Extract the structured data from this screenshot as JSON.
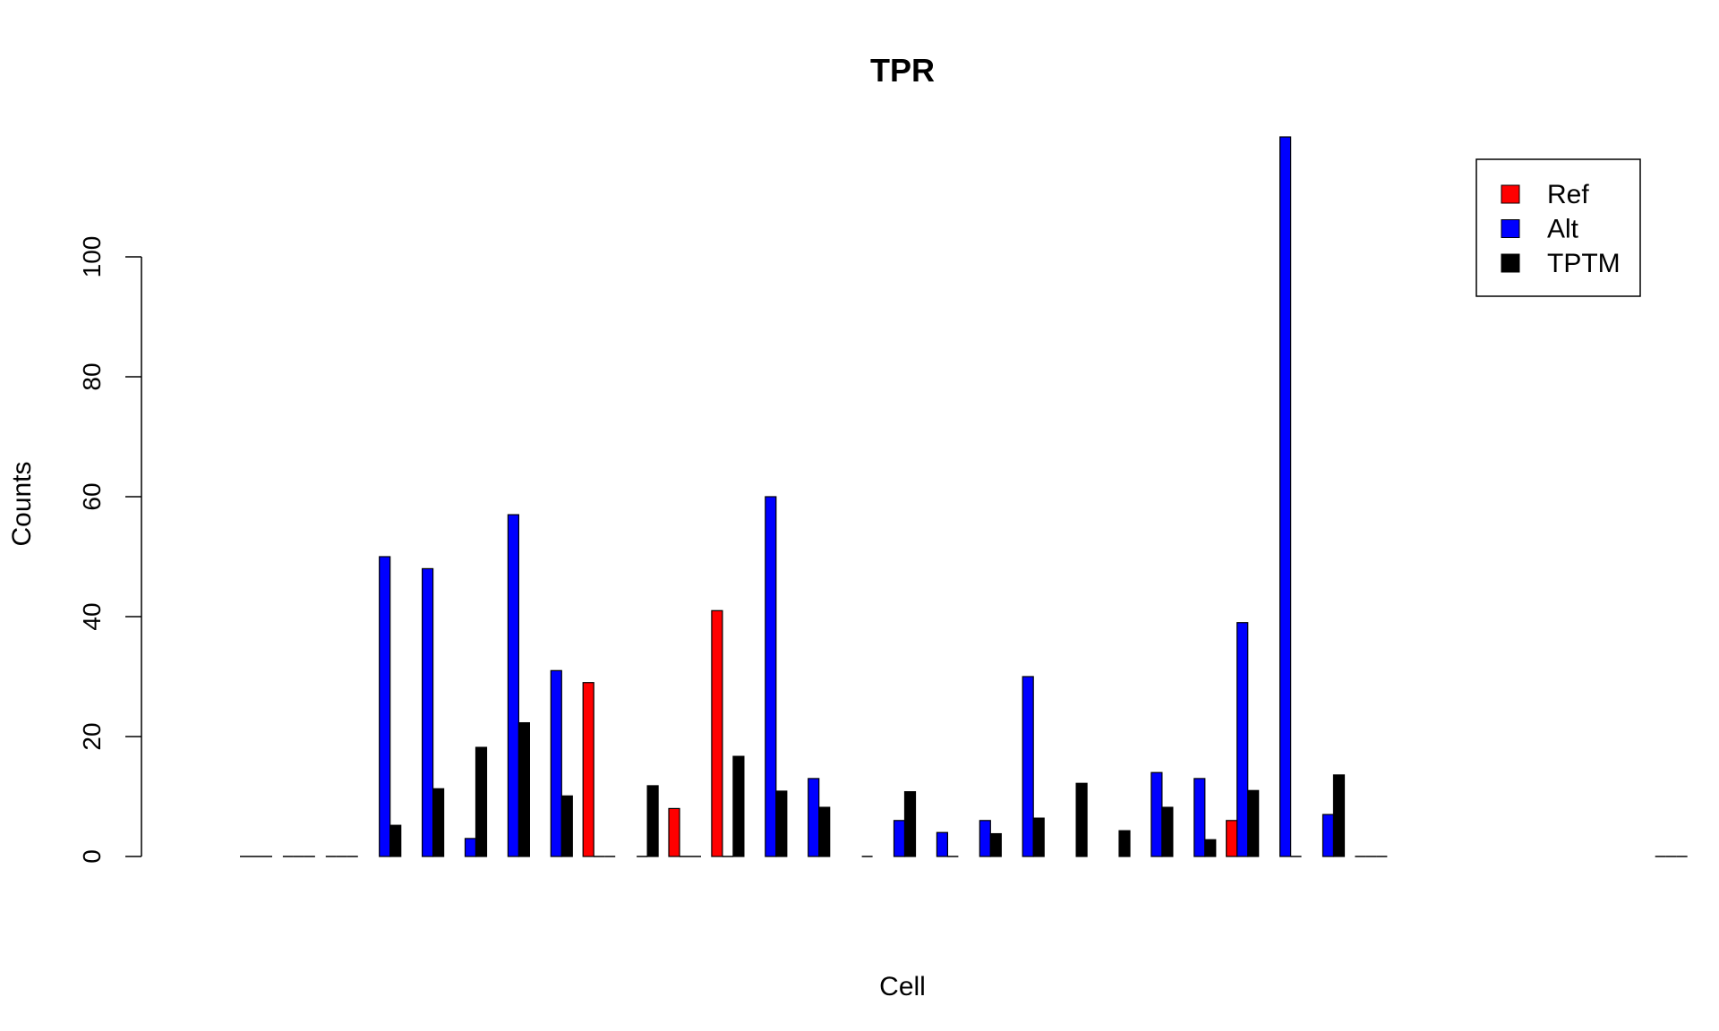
{
  "chart_data": {
    "type": "bar",
    "title": "TPR",
    "xlabel": "Cell",
    "ylabel": "Counts",
    "ylim": [
      0,
      120
    ],
    "yticks": [
      0,
      20,
      40,
      60,
      80,
      100
    ],
    "grid": false,
    "legend_position": "top-right",
    "n_cells": 34,
    "series": [
      {
        "name": "Ref",
        "color": "#ff0000",
        "values": [
          0,
          0,
          0,
          0,
          0,
          0,
          0,
          0,
          29,
          0,
          8,
          41,
          0,
          0,
          0,
          0,
          0,
          0,
          0,
          0,
          0,
          0,
          0,
          6,
          0,
          0,
          0,
          0,
          0,
          0,
          0,
          0,
          0,
          0
        ]
      },
      {
        "name": "Alt",
        "color": "#0000ff",
        "values": [
          0,
          0,
          0,
          50,
          48,
          3,
          57,
          31,
          0,
          0,
          0,
          0,
          60,
          13,
          0,
          6,
          4,
          6,
          30,
          0,
          0,
          14,
          13,
          39,
          120,
          7,
          0,
          0,
          0,
          0,
          0,
          0,
          0,
          0
        ]
      },
      {
        "name": "TPTM",
        "color": "#000000",
        "values": [
          0,
          0,
          0,
          5.2,
          11.3,
          18.2,
          22.3,
          10.1,
          0,
          11.8,
          0,
          16.7,
          10.9,
          8.2,
          0,
          10.8,
          0,
          3.8,
          6.4,
          12.2,
          4.3,
          8.2,
          2.8,
          11,
          0,
          13.6,
          0,
          0,
          0,
          0,
          0,
          0,
          0,
          0
        ]
      }
    ],
    "stroke_only_baselines": [
      [
        0,
        1,
        2,
        26,
        33
      ],
      [
        0,
        1,
        2,
        4,
        5,
        6,
        7,
        8,
        9,
        10,
        11,
        12,
        13,
        16,
        17,
        18,
        21,
        23,
        24,
        25,
        26,
        33
      ],
      [
        0,
        1,
        2,
        3,
        4,
        5,
        6,
        7,
        8,
        9,
        10,
        11,
        12,
        13,
        14,
        15,
        16,
        17,
        18,
        19,
        20,
        21,
        22,
        23,
        24,
        25,
        26,
        33
      ]
    ]
  }
}
